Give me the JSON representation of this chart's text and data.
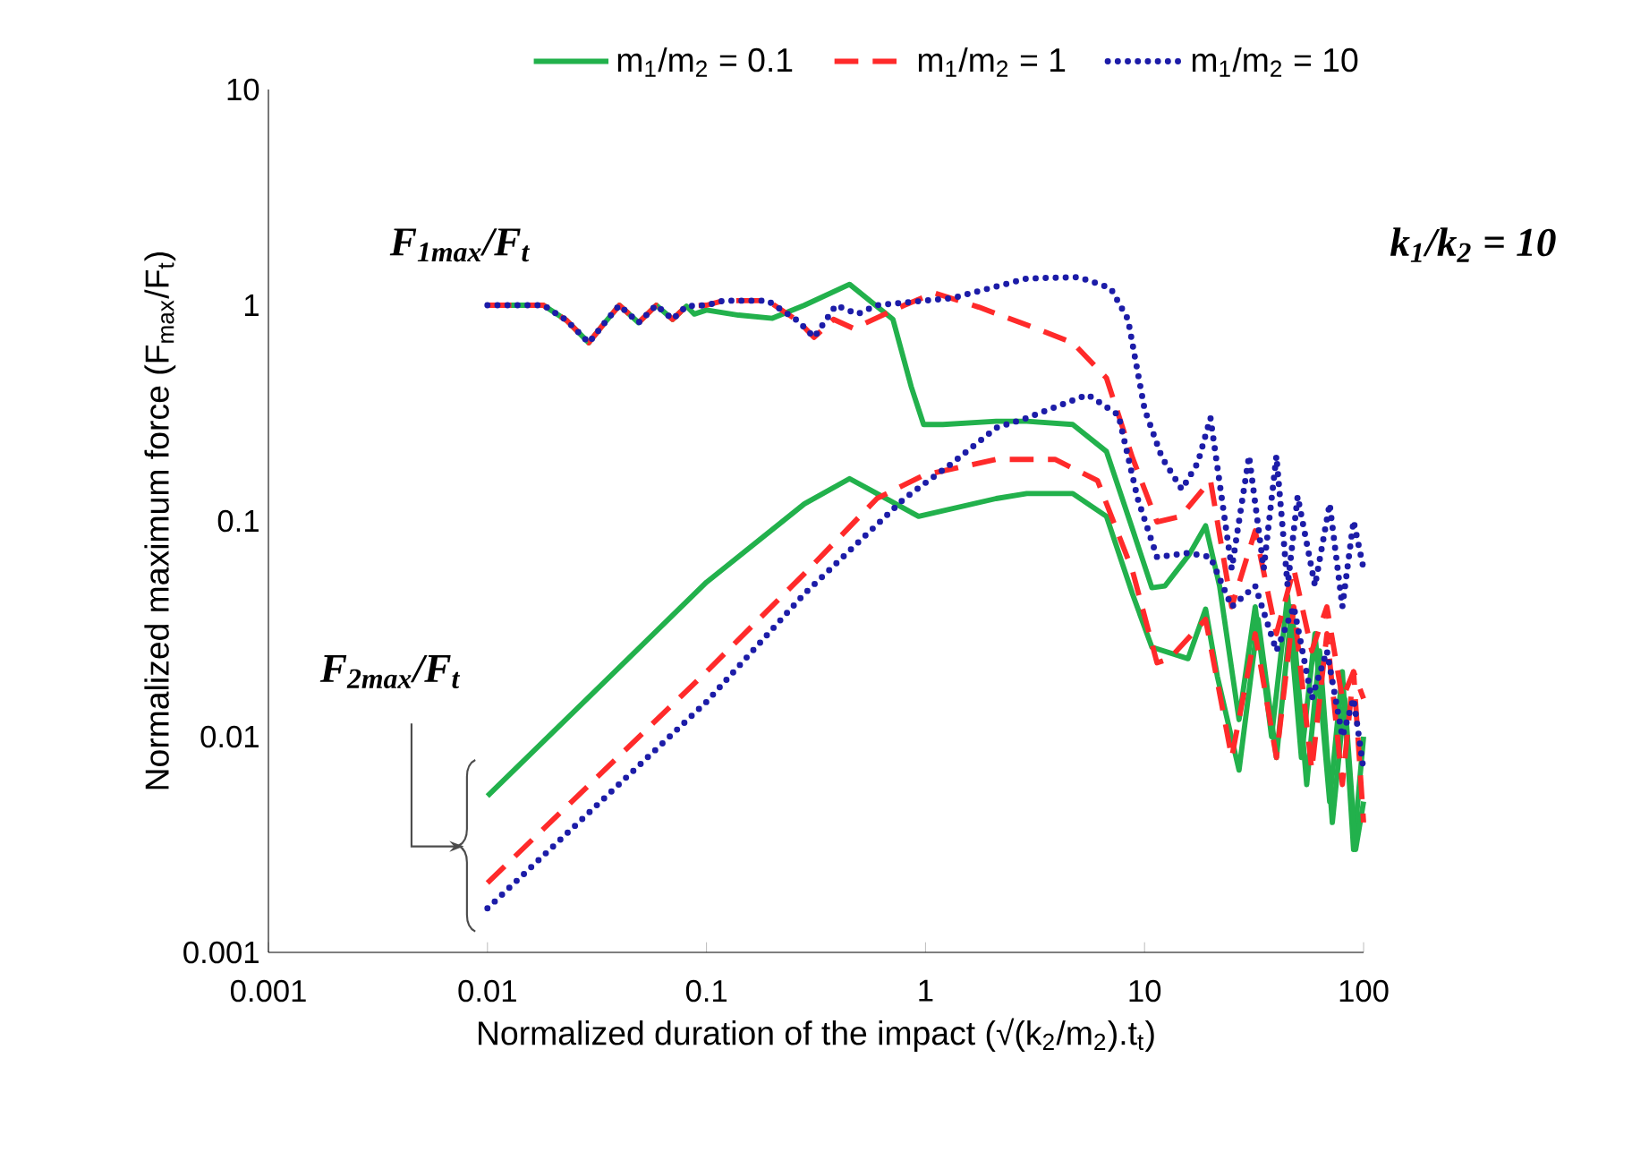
{
  "chart_data": {
    "type": "line",
    "xlabel": "Normalized duration of the impact  (√(k$_{2}$/m$_{2}$).t$_{t}$)",
    "ylabel": "Normalized maximum force  (F$_{max}$/F$_{t}$)",
    "annotations": [
      "F$_{1max}$/F$_{t}$",
      "k$_{1}$/k$_{2}$ = 10",
      "F$_{2max}$/F$_{t}$"
    ],
    "log": "xy",
    "xlim": [
      0.001,
      100
    ],
    "ylim": [
      0.001,
      10
    ],
    "xticks": [
      0.001,
      0.01,
      0.1,
      1,
      10,
      100
    ],
    "yticks": [
      0.001,
      0.01,
      0.1,
      1,
      10
    ],
    "legend": "top",
    "grid": false,
    "series": [
      {
        "name": "m$_{1}$/m$_{2}$ = 0.1",
        "color": "#22b14c",
        "line_style": "solid",
        "x": [
          0.01,
          0.018,
          0.023,
          0.029,
          0.034,
          0.04,
          0.049,
          0.059,
          0.07,
          0.081,
          0.088,
          0.1,
          0.14,
          0.2,
          0.28,
          0.45,
          0.71,
          0.86,
          0.98,
          1.2,
          2.1,
          2.9,
          4.7,
          6.7,
          8.8,
          10.8,
          12.4,
          16,
          19,
          22,
          27,
          32,
          38,
          45,
          52,
          60,
          70,
          80,
          90,
          100
        ],
        "values": [
          1,
          1,
          0.85,
          0.67,
          0.82,
          1,
          0.83,
          1,
          0.86,
          0.99,
          0.91,
          0.95,
          0.9,
          0.87,
          1,
          1.25,
          0.86,
          0.42,
          0.28,
          0.28,
          0.29,
          0.29,
          0.28,
          0.21,
          0.092,
          0.049,
          0.05,
          0.07,
          0.095,
          0.05,
          0.012,
          0.04,
          0.01,
          0.045,
          0.008,
          0.03,
          0.005,
          0.02,
          0.003,
          0.01
        ]
      },
      {
        "name": "m$_{1}$/m$_{2}$ = 1",
        "color": "#ff2a2a",
        "line_style": "dashed",
        "x": [
          0.01,
          0.018,
          0.023,
          0.029,
          0.034,
          0.04,
          0.049,
          0.059,
          0.07,
          0.081,
          0.1,
          0.12,
          0.19,
          0.26,
          0.31,
          0.38,
          0.47,
          0.8,
          1.1,
          1.75,
          2.9,
          4.7,
          6.7,
          8.8,
          11.4,
          14.6,
          20,
          25,
          32,
          40,
          48,
          58,
          68,
          80,
          90,
          100
        ],
        "values": [
          1,
          1,
          0.85,
          0.67,
          0.82,
          1,
          0.83,
          1,
          0.86,
          0.99,
          1,
          1.05,
          1.05,
          0.85,
          0.71,
          0.86,
          0.78,
          1,
          1.14,
          0.98,
          0.81,
          0.67,
          0.46,
          0.197,
          0.099,
          0.105,
          0.154,
          0.04,
          0.09,
          0.03,
          0.06,
          0.025,
          0.04,
          0.015,
          0.02,
          0.015
        ]
      },
      {
        "name": "m$_{1}$/m$_{2}$ = 10",
        "color": "#1c1ca8",
        "line_style": "dotted",
        "x": [
          0.01,
          0.018,
          0.023,
          0.029,
          0.034,
          0.04,
          0.049,
          0.059,
          0.07,
          0.081,
          0.1,
          0.12,
          0.19,
          0.26,
          0.31,
          0.39,
          0.49,
          0.6,
          1.33,
          2.9,
          5,
          7,
          8.4,
          10,
          12,
          14.8,
          17.5,
          20,
          25,
          30,
          35,
          40,
          45,
          50,
          60,
          70,
          80,
          90,
          100
        ],
        "values": [
          1,
          1,
          0.85,
          0.67,
          0.82,
          1,
          0.83,
          1,
          0.86,
          0.99,
          1,
          1.05,
          1.05,
          0.85,
          0.71,
          1,
          0.91,
          1,
          1.08,
          1.33,
          1.35,
          1.2,
          0.86,
          0.33,
          0.197,
          0.14,
          0.186,
          0.3,
          0.06,
          0.2,
          0.06,
          0.2,
          0.05,
          0.13,
          0.05,
          0.12,
          0.04,
          0.1,
          0.06
        ]
      },
      {
        "color": "#22b14c",
        "line_style": "solid",
        "x": [
          0.01,
          0.1,
          0.28,
          0.45,
          0.6,
          0.93,
          2.1,
          2.9,
          4.7,
          6.7,
          8.8,
          10.8,
          15.8,
          19,
          21.5,
          27,
          33,
          40,
          47,
          55,
          63,
          72,
          82,
          92,
          100
        ],
        "values": [
          0.0053,
          0.052,
          0.12,
          0.157,
          0.134,
          0.105,
          0.127,
          0.134,
          0.134,
          0.105,
          0.046,
          0.026,
          0.023,
          0.039,
          0.019,
          0.007,
          0.035,
          0.008,
          0.04,
          0.006,
          0.025,
          0.004,
          0.015,
          0.003,
          0.005
        ]
      },
      {
        "color": "#ff2a2a",
        "line_style": "dashed",
        "x": [
          0.01,
          0.1,
          0.28,
          0.6,
          0.98,
          2.1,
          3.9,
          6.1,
          8.8,
          11.4,
          13,
          19,
          25,
          32,
          40,
          48,
          58,
          68,
          80,
          90,
          100
        ],
        "values": [
          0.0021,
          0.02,
          0.057,
          0.127,
          0.163,
          0.193,
          0.193,
          0.154,
          0.059,
          0.022,
          0.023,
          0.035,
          0.008,
          0.03,
          0.008,
          0.04,
          0.007,
          0.03,
          0.006,
          0.02,
          0.004
        ]
      },
      {
        "color": "#1c1ca8",
        "line_style": "dotted",
        "x": [
          0.01,
          0.1,
          0.28,
          0.8,
          1.33,
          2.1,
          2.9,
          5.5,
          7.6,
          9.3,
          11.4,
          15.8,
          20,
          25,
          32,
          40,
          48,
          58,
          68,
          80,
          90,
          100
        ],
        "values": [
          0.0016,
          0.0145,
          0.046,
          0.127,
          0.186,
          0.27,
          0.3,
          0.385,
          0.31,
          0.127,
          0.068,
          0.071,
          0.068,
          0.04,
          0.05,
          0.025,
          0.04,
          0.015,
          0.025,
          0.01,
          0.015,
          0.007
        ]
      }
    ]
  }
}
